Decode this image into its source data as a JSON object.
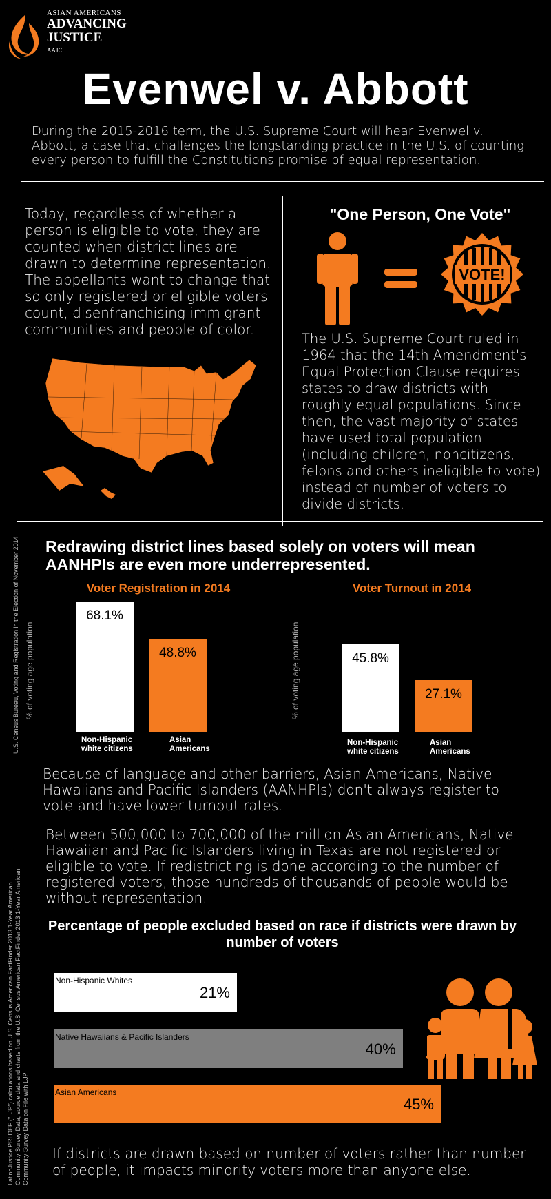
{
  "logo": {
    "line1": "ASIAN AMERICANS",
    "line2": "ADVANCING",
    "line3": "JUSTICE",
    "abbr": "AAJC"
  },
  "title": "Evenwel v. Abbott",
  "intro": "During the 2015-2016 term, the U.S. Supreme Court will hear Evenwel v. Abbott, a case that challenges the longstanding practice in the U.S. of counting every person to fulfill the Constitutions promise of equal representation.",
  "left_paragraph": "Today, regardless of whether a person is eligible to vote, they are counted when district lines are drawn to determine representation. The appellants want to change that so only registered or eligible voters count, disenfranchising immigrant communities and people of color.",
  "one_person_heading": "\"One Person, One Vote\"",
  "vote_badge": "VOTE!",
  "right_paragraph": "The U.S. Supreme Court ruled in 1964 that the 14th Amendment's Equal Protection Clause requires states to draw districts with roughly equal populations. Since then, the vast majority of states have used total population (including children, noncitizens, felons and others ineligible to vote) instead of number of voters to divide districts.",
  "chart_heading": "Redrawing district lines based solely on voters will mean AANHPIs are even more underrepresented.",
  "source_1": "U.S. Census Bureau, Voting and Registration in the Election of November 2014",
  "colors": {
    "accent": "#f47b20",
    "bar_white": "#ffffff",
    "bar_gray": "#7f7f7f"
  },
  "chart_data": [
    {
      "type": "bar",
      "title": "Voter Registration in 2014",
      "ylabel": "% of voting age population",
      "categories": [
        "Non-Hispanic white citizens",
        "Asian Americans"
      ],
      "values": [
        68.1,
        48.8
      ],
      "value_labels": [
        "68.1%",
        "48.8%"
      ],
      "category_labels": [
        [
          "Non-Hispanic",
          "white citizens"
        ],
        [
          "Asian",
          "Americans"
        ]
      ]
    },
    {
      "type": "bar",
      "title": "Voter Turnout in 2014",
      "ylabel": "% of voting age population",
      "categories": [
        "Non-Hispanic white citizens",
        "Asian Americans"
      ],
      "values": [
        45.8,
        27.1
      ],
      "value_labels": [
        "45.8%",
        "27.1%"
      ],
      "category_labels": [
        [
          "Non-Hispanic",
          "white citizens"
        ],
        [
          "Asian",
          "Americans"
        ]
      ]
    },
    {
      "type": "bar",
      "orientation": "horizontal",
      "title": "Percentage of people excluded based on race if districts were drawn by number of voters",
      "categories": [
        "Non-Hispanic Whites",
        "Native Hawaiians & Pacific Islanders",
        "Asian Americans"
      ],
      "values": [
        21,
        40,
        45
      ],
      "value_labels": [
        "21%",
        "40%",
        "45%"
      ]
    }
  ],
  "barriers_paragraph": "Because of language and other barriers, Asian Americans, Native Hawaiians and Pacific Islanders (AANHPIs) don't always register to vote and have lower turnout rates.",
  "texas_paragraph": "Between 500,000 to 700,000 of the million Asian Americans, Native Hawaiian and Pacific Islanders living in Texas are not registered or eligible to vote. If redistricting is done according to the number of registered voters, those hundreds of thousands of people would be without representation.",
  "source_2": "LatinoJustice PRLDEF (\"LJP\") calculations based on U.S. Census American FactFinder 2013 1-Year American Community Survey Data; source data and charts from the U.S. Census American FactFinder 2013 1-Year American Community Survey Data on File with LJP",
  "final_paragraph": "If districts are drawn based on number of voters rather than number of people, it impacts minority voters more than anyone else."
}
